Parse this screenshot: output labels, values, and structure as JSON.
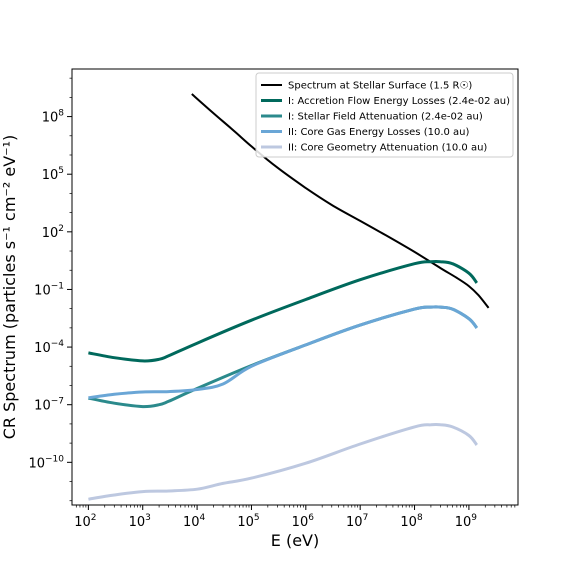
{
  "chart_data": {
    "type": "line",
    "title": "",
    "xlabel": "E (eV)",
    "ylabel": "CR Spectrum (particles s⁻¹ cm⁻² eV⁻¹)",
    "xscale": "log",
    "yscale": "log",
    "xlim": [
      50,
      8000000000.0
    ],
    "ylim": [
      6e-13,
      30000000000.0
    ],
    "grid": false,
    "legend": "top-right",
    "x_ticks": [
      {
        "value": 100,
        "base": "10",
        "exp": "2"
      },
      {
        "value": 1000,
        "base": "10",
        "exp": "3"
      },
      {
        "value": 10000,
        "base": "10",
        "exp": "4"
      },
      {
        "value": 100000,
        "base": "10",
        "exp": "5"
      },
      {
        "value": 1000000,
        "base": "10",
        "exp": "6"
      },
      {
        "value": 10000000,
        "base": "10",
        "exp": "7"
      },
      {
        "value": 100000000,
        "base": "10",
        "exp": "8"
      },
      {
        "value": 1000000000,
        "base": "10",
        "exp": "9"
      }
    ],
    "y_ticks": [
      {
        "value": 1e-10,
        "base": "10",
        "exp": "−10"
      },
      {
        "value": 1e-07,
        "base": "10",
        "exp": "−7"
      },
      {
        "value": 0.0001,
        "base": "10",
        "exp": "−4"
      },
      {
        "value": 0.1,
        "base": "10",
        "exp": "−1"
      },
      {
        "value": 100,
        "base": "10",
        "exp": "2"
      },
      {
        "value": 100000,
        "base": "10",
        "exp": "5"
      },
      {
        "value": 100000000,
        "base": "10",
        "exp": "8"
      }
    ],
    "series": [
      {
        "name": "Spectrum at Stellar Surface (1.5 R☉)",
        "color": "#000000",
        "x": [
          8000.0,
          20000.0,
          50000.0,
          100000.0,
          300000.0,
          1000000.0,
          3000000.0,
          10000000.0,
          30000000.0,
          100000000.0,
          300000000.0,
          600000000.0,
          1000000000.0,
          1500000000.0,
          2300000000.0
        ],
        "y": [
          1500000000.0,
          150000000.0,
          16000000.0,
          2800000.0,
          220000.0,
          19000.0,
          2500.0,
          370.0,
          65,
          9,
          1.3,
          0.4,
          0.15,
          0.05,
          0.011
        ]
      },
      {
        "name": "I: Accretion Flow Energy Losses (2.4e-02 au)",
        "color": "#00695c",
        "x": [
          100,
          300,
          1000,
          2000,
          3000,
          10000.0,
          100000.0,
          1000000.0,
          10000000.0,
          100000000.0,
          200000000.0,
          300000000.0,
          500000000.0,
          1000000000.0,
          1400000000.0
        ],
        "y": [
          5e-05,
          2.8e-05,
          1.9e-05,
          2.3e-05,
          3.5e-05,
          0.00016,
          0.0025,
          0.03,
          0.32,
          2.2,
          2.8,
          2.8,
          2.2,
          0.7,
          0.22
        ]
      },
      {
        "name": "I: Stellar Field Attenuation (2.4e-02 au)",
        "color": "#2b8a8c",
        "x": [
          100,
          300,
          1000,
          2000,
          3000,
          10000.0,
          100000.0,
          1000000.0,
          10000000.0,
          100000000.0,
          200000000.0,
          300000000.0,
          500000000.0,
          1000000000.0,
          1400000000.0
        ],
        "y": [
          2.2e-07,
          1.2e-07,
          8e-08,
          1e-07,
          1.5e-07,
          7e-07,
          1.1e-05,
          0.00013,
          0.0014,
          0.0095,
          0.012,
          0.012,
          0.0095,
          0.003,
          0.001
        ]
      },
      {
        "name": "II: Core Gas Energy Losses (10.0 au)",
        "color": "#6aa6d6",
        "x": [
          100,
          300,
          1000,
          3000,
          10000.0,
          30000.0,
          100000.0,
          1000000.0,
          10000000.0,
          100000000.0,
          200000000.0,
          300000000.0,
          500000000.0,
          1000000000.0,
          1400000000.0
        ],
        "y": [
          2.3e-07,
          3.5e-07,
          4.6e-07,
          4.8e-07,
          6.2e-07,
          1.2e-06,
          1e-05,
          0.00013,
          0.0014,
          0.0095,
          0.012,
          0.012,
          0.0095,
          0.003,
          0.001
        ]
      },
      {
        "name": "II: Core Geometry Attenuation (10.0 au)",
        "color": "#bdc8e0",
        "x": [
          100,
          300,
          1000,
          3000,
          10000.0,
          30000.0,
          100000.0,
          1000000.0,
          10000000.0,
          100000000.0,
          200000000.0,
          300000000.0,
          500000000.0,
          1000000000.0,
          1400000000.0
        ],
        "y": [
          1.2e-12,
          2e-12,
          3e-12,
          3.2e-12,
          4e-12,
          8e-12,
          1.5e-11,
          9e-11,
          9e-10,
          7e-09,
          9e-09,
          9e-09,
          7e-09,
          2.5e-09,
          8e-10
        ]
      }
    ]
  }
}
